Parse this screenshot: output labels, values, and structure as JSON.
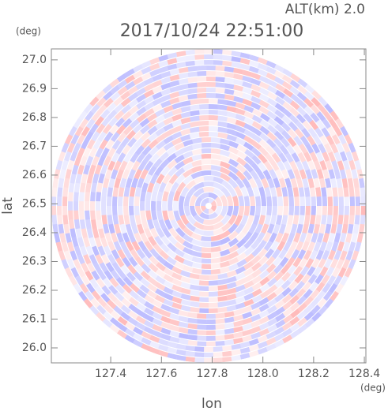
{
  "chart_data": {
    "type": "radar-ppi",
    "title": "2017/10/24 22:51:00",
    "subtitle": "ALT(km) 2.0",
    "x_label": "lon",
    "y_label": "lat",
    "x_unit": "(deg)",
    "y_unit": "(deg)",
    "xlim": [
      127.166,
      128.406
    ],
    "ylim": [
      25.948,
      27.038
    ],
    "xticks": [
      127.4,
      127.6,
      127.8,
      {
        "value": 128,
        "label": "128.0"
      },
      128.2,
      128.4
    ],
    "yticks": [
      {
        "value": 26,
        "label": "26.0"
      },
      26.1,
      26.2,
      26.3,
      26.4,
      26.5,
      26.6,
      26.7,
      26.8,
      26.9,
      {
        "value": 27,
        "label": "27.0"
      }
    ]
  }
}
